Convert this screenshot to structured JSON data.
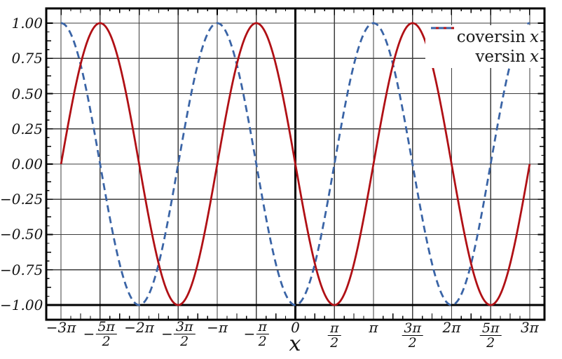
{
  "chart_data": {
    "type": "line",
    "title": "",
    "xlabel": "x",
    "ylabel": "",
    "x_unit": "radians",
    "x_domain_pi": [
      -3,
      3
    ],
    "xlim": [
      -10.02,
      10.02
    ],
    "ylim": [
      -1.1045,
      1.1045
    ],
    "grid": true,
    "legend_position": "top-right inside, no border, white background",
    "emphasized_axis_lines": {
      "horizontal_at_y": -1.0,
      "vertical_at_x": 0
    },
    "series": [
      {
        "name": "coversin",
        "legend_label": "coversin",
        "legend_var": "x",
        "curve": "-sin(x)",
        "color": "#b01015",
        "line_style": "solid",
        "amplitude": 1,
        "period_pi": 2,
        "maxima_at_x_pi": [
          -2.5,
          -0.5,
          1.5
        ],
        "minima_at_x_pi": [
          -1.5,
          0.5,
          2.5
        ],
        "zeros_at_x_pi": [
          -3,
          -2,
          -1,
          0,
          1,
          2,
          3
        ]
      },
      {
        "name": "versin",
        "legend_label": "versin",
        "legend_var": "x",
        "curve": "-cos(x)",
        "color": "#3a64a6",
        "line_style": "dashed",
        "amplitude": 1,
        "period_pi": 2,
        "maxima_at_x_pi": [
          -3,
          -1,
          1,
          3
        ],
        "minima_at_x_pi": [
          -2,
          0,
          2
        ],
        "zeros_at_x_pi": [
          -2.5,
          -1.5,
          -0.5,
          0.5,
          1.5,
          2.5
        ]
      }
    ],
    "x_ticks": [
      {
        "pos_pi": -3,
        "text": "−3π"
      },
      {
        "pos_pi": -2.5,
        "sign": "−",
        "num": "5π",
        "den": "2"
      },
      {
        "pos_pi": -2,
        "text": "−2π"
      },
      {
        "pos_pi": -1.5,
        "sign": "−",
        "num": "3π",
        "den": "2"
      },
      {
        "pos_pi": -1,
        "text": "−π"
      },
      {
        "pos_pi": -0.5,
        "sign": "−",
        "num": "π",
        "den": "2"
      },
      {
        "pos_pi": 0,
        "text": "0"
      },
      {
        "pos_pi": 0.5,
        "num": "π",
        "den": "2"
      },
      {
        "pos_pi": 1,
        "text": "π"
      },
      {
        "pos_pi": 1.5,
        "num": "3π",
        "den": "2"
      },
      {
        "pos_pi": 2,
        "text": "2π"
      },
      {
        "pos_pi": 2.5,
        "num": "5π",
        "den": "2"
      },
      {
        "pos_pi": 3,
        "text": "3π"
      }
    ],
    "y_ticks": [
      {
        "v": 1.0,
        "label": "1.00"
      },
      {
        "v": 0.75,
        "label": "0.75"
      },
      {
        "v": 0.5,
        "label": "0.50"
      },
      {
        "v": 0.25,
        "label": "0.25"
      },
      {
        "v": 0.0,
        "label": "0.00"
      },
      {
        "v": -0.25,
        "label": "−0.25"
      },
      {
        "v": -0.5,
        "label": "−0.50"
      },
      {
        "v": -0.75,
        "label": "−0.75"
      },
      {
        "v": -1.0,
        "label": "−1.00"
      }
    ],
    "minor_tick_step_x_pi": 0.125,
    "minor_tick_step_y": 0.0625
  },
  "style": {
    "background": "#ffffff",
    "grid_color": "#3d3d3d",
    "frame_color": "#000000",
    "text_color": "#141414",
    "legend_background": "#ffffff"
  }
}
